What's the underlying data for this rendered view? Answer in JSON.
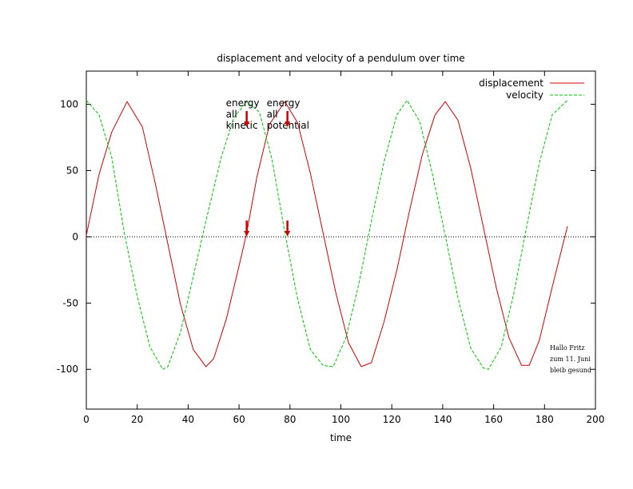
{
  "chart_data": {
    "type": "line",
    "title": "displacement and velocity of a pendulum over time",
    "xlabel": "time",
    "ylabel": "",
    "xlim": [
      0,
      200
    ],
    "ylim": [
      -130,
      125
    ],
    "x_ticks": [
      0,
      20,
      40,
      60,
      80,
      100,
      120,
      140,
      160,
      180,
      200
    ],
    "y_ticks": [
      -100,
      -50,
      0,
      50,
      100
    ],
    "x_tick_labels": [
      "0",
      "20",
      "40",
      "60",
      "80",
      "100",
      "120",
      "140",
      "160",
      "180",
      "200"
    ],
    "y_tick_labels": [
      "-100",
      "-50",
      "0",
      "50",
      "100"
    ],
    "grid": false,
    "zero_line": true,
    "legend_position": "top-right",
    "series": [
      {
        "name": "displacement",
        "color": "#d00000",
        "dash": "solid",
        "x": [
          0,
          5,
          10,
          16,
          22,
          27,
          32,
          37,
          42,
          47,
          50,
          55,
          60,
          63,
          67,
          72,
          78,
          83,
          88,
          93,
          98,
          103,
          108,
          112,
          117,
          122,
          127,
          132,
          137,
          141,
          146,
          151,
          156,
          161,
          166,
          171,
          174,
          178,
          183,
          189
        ],
        "y": [
          1,
          47,
          79,
          102,
          83,
          41,
          -5,
          -51,
          -85,
          -98,
          -92,
          -62,
          -22,
          3,
          45,
          85,
          102,
          86,
          48,
          3,
          -42,
          -80,
          -98,
          -95,
          -64,
          -25,
          20,
          62,
          92,
          102,
          88,
          52,
          7,
          -38,
          -76,
          -97,
          -97,
          -78,
          -38,
          8
        ]
      },
      {
        "name": "velocity",
        "color": "#00c800",
        "dash": "dashed",
        "x": [
          0,
          5,
          10,
          15,
          20,
          25,
          30,
          32,
          37,
          42,
          47,
          53,
          58,
          63,
          68,
          73,
          78,
          83,
          88,
          93,
          97,
          102,
          107,
          112,
          117,
          122,
          126,
          131,
          136,
          141,
          146,
          151,
          156,
          158,
          163,
          168,
          173,
          178,
          183,
          189
        ],
        "y": [
          103,
          92,
          60,
          2,
          -45,
          -83,
          -100,
          -98,
          -72,
          -30,
          12,
          60,
          90,
          102,
          94,
          58,
          3,
          -47,
          -85,
          -97,
          -98,
          -76,
          -36,
          12,
          57,
          92,
          103,
          87,
          47,
          1,
          -46,
          -84,
          -99,
          -100,
          -83,
          -42,
          8,
          56,
          92,
          103
        ]
      }
    ],
    "annotations": [
      {
        "lines": [
          "energy",
          "all",
          "kinetic"
        ],
        "arrow_x": 63
      },
      {
        "lines": [
          "energy",
          "all",
          "potential"
        ],
        "arrow_x": 79
      }
    ],
    "note": [
      "Hallo Fritz",
      "zum 11. Juni",
      "bleib gesund"
    ],
    "arrow_color": "#d00000"
  }
}
